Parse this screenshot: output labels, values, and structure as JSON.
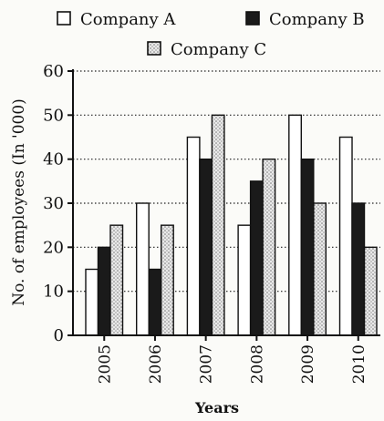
{
  "chart_data": {
    "type": "bar",
    "xlabel": "Years",
    "ylabel": "No. of employees (In '000)",
    "ylim": [
      0,
      60
    ],
    "yticks": [
      0,
      10,
      20,
      30,
      40,
      50,
      60
    ],
    "grid": true,
    "legend_position": "top",
    "categories": [
      "2005",
      "2006",
      "2007",
      "2008",
      "2009",
      "2010"
    ],
    "series": [
      {
        "name": "Company A",
        "pattern": "white",
        "values": [
          15,
          30,
          45,
          25,
          50,
          45
        ]
      },
      {
        "name": "Company B",
        "pattern": "black",
        "values": [
          20,
          15,
          40,
          35,
          40,
          30
        ]
      },
      {
        "name": "Company C",
        "pattern": "dotted",
        "values": [
          25,
          25,
          50,
          40,
          30,
          20
        ]
      }
    ]
  },
  "colors": {
    "frame": "#111111",
    "bar_fill_a": "#ffffff",
    "bar_fill_b": "#1a1a1a",
    "bar_fill_c": "#d8d8d8"
  }
}
